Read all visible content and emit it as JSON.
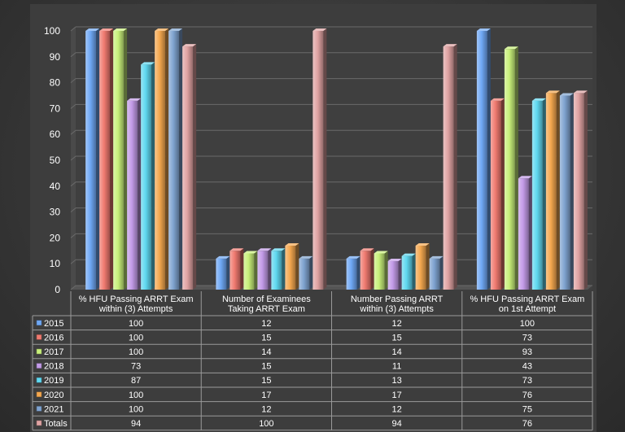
{
  "chart_data": {
    "type": "bar",
    "title": "",
    "xlabel": "",
    "ylabel": "",
    "ylim": [
      0,
      100
    ],
    "yticks": [
      0,
      10,
      20,
      30,
      40,
      50,
      60,
      70,
      80,
      90,
      100
    ],
    "grid": true,
    "legend": "data-table-left",
    "categories": [
      [
        "% HFU Passing ARRT Exam",
        "within (3) Attempts"
      ],
      [
        "Number of Examinees",
        "Taking ARRT Exam"
      ],
      [
        "Number Passing ARRT",
        "within (3) Attempts"
      ],
      [
        "% HFU Passing ARRT Exam",
        "on 1st Attempt"
      ]
    ],
    "series": [
      {
        "name": "2015",
        "color": "#6fa8f5",
        "values": [
          100,
          12,
          12,
          100
        ]
      },
      {
        "name": "2016",
        "color": "#f07a70",
        "values": [
          100,
          15,
          15,
          73
        ]
      },
      {
        "name": "2017",
        "color": "#c8f07a",
        "values": [
          100,
          14,
          14,
          93
        ]
      },
      {
        "name": "2018",
        "color": "#c39be8",
        "values": [
          73,
          15,
          11,
          43
        ]
      },
      {
        "name": "2019",
        "color": "#5fd8f0",
        "values": [
          87,
          15,
          13,
          73
        ]
      },
      {
        "name": "2020",
        "color": "#f5a84f",
        "values": [
          100,
          17,
          17,
          76
        ]
      },
      {
        "name": "2021",
        "color": "#7fa3d0",
        "values": [
          100,
          12,
          12,
          75
        ]
      },
      {
        "name": "Totals",
        "color": "#e0a3a3",
        "values": [
          94,
          100,
          94,
          76
        ]
      }
    ]
  }
}
